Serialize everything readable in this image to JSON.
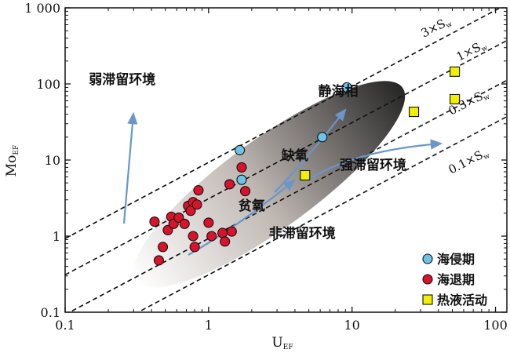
{
  "chart_data": {
    "type": "scatter",
    "xlabel_main": "U",
    "xlabel_sub": "EF",
    "ylabel_main": "Mo",
    "ylabel_sub": "EF",
    "x_scale": "log",
    "y_scale": "log",
    "xlim": [
      0.1,
      120
    ],
    "ylim": [
      0.1,
      1000
    ],
    "x_ticks": [
      {
        "value": 0.1,
        "label": "0.1"
      },
      {
        "value": 1,
        "label": "1"
      },
      {
        "value": 10,
        "label": "10"
      },
      {
        "value": 100,
        "label": "100"
      }
    ],
    "y_ticks": [
      {
        "value": 0.1,
        "label": "0.1"
      },
      {
        "value": 1,
        "label": "1"
      },
      {
        "value": 10,
        "label": "10"
      },
      {
        "value": 100,
        "label": "100"
      },
      {
        "value": 1000,
        "label": "1 000"
      }
    ],
    "reference_lines": [
      {
        "label": "3×S",
        "sub": "w",
        "factor": 3
      },
      {
        "label": "1×S",
        "sub": "w",
        "factor": 1
      },
      {
        "label": "0.3×S",
        "sub": "w",
        "factor": 0.3
      },
      {
        "label": "0.1×S",
        "sub": "w",
        "factor": 0.1
      }
    ],
    "zone_labels": [
      {
        "text": "弱滞留环境",
        "x": 0.25,
        "y": 100
      },
      {
        "text": "静海相",
        "x": 8,
        "y": 70
      },
      {
        "text": "缺氧",
        "x": 4,
        "y": 10
      },
      {
        "text": "强滞留环境",
        "x": 14,
        "y": 7.5
      },
      {
        "text": "贫氧",
        "x": 2,
        "y": 2.2
      },
      {
        "text": "非滞留环境",
        "x": 4.5,
        "y": 0.95
      }
    ],
    "series": [
      {
        "name": "海侵期",
        "marker": "circle",
        "color": "#6fc3e8",
        "points": [
          [
            1.65,
            13.5
          ],
          [
            1.7,
            5.5
          ],
          [
            6.2,
            20
          ],
          [
            9.2,
            90
          ]
        ]
      },
      {
        "name": "海退期",
        "marker": "circle",
        "color": "#d8132b",
        "points": [
          [
            0.42,
            1.55
          ],
          [
            0.45,
            0.48
          ],
          [
            0.48,
            0.72
          ],
          [
            0.52,
            1.2
          ],
          [
            0.55,
            1.8
          ],
          [
            0.57,
            1.45
          ],
          [
            0.62,
            1.75
          ],
          [
            0.68,
            1.45
          ],
          [
            0.72,
            2.5
          ],
          [
            0.75,
            2.15
          ],
          [
            0.78,
            2.8
          ],
          [
            0.83,
            2.6
          ],
          [
            0.85,
            4.0
          ],
          [
            0.78,
            1.0
          ],
          [
            0.8,
            0.72
          ],
          [
            1.0,
            1.5
          ],
          [
            1.05,
            1.0
          ],
          [
            1.25,
            1.1
          ],
          [
            1.3,
            0.85
          ],
          [
            1.4,
            4.8
          ],
          [
            1.45,
            1.15
          ],
          [
            1.7,
            8.0
          ],
          [
            1.8,
            3.9
          ]
        ]
      },
      {
        "name": "热液活动",
        "marker": "square",
        "color": "#f0f000",
        "points": [
          [
            4.7,
            6.3
          ],
          [
            27,
            43
          ],
          [
            52,
            145
          ],
          [
            52,
            63
          ]
        ]
      }
    ]
  }
}
